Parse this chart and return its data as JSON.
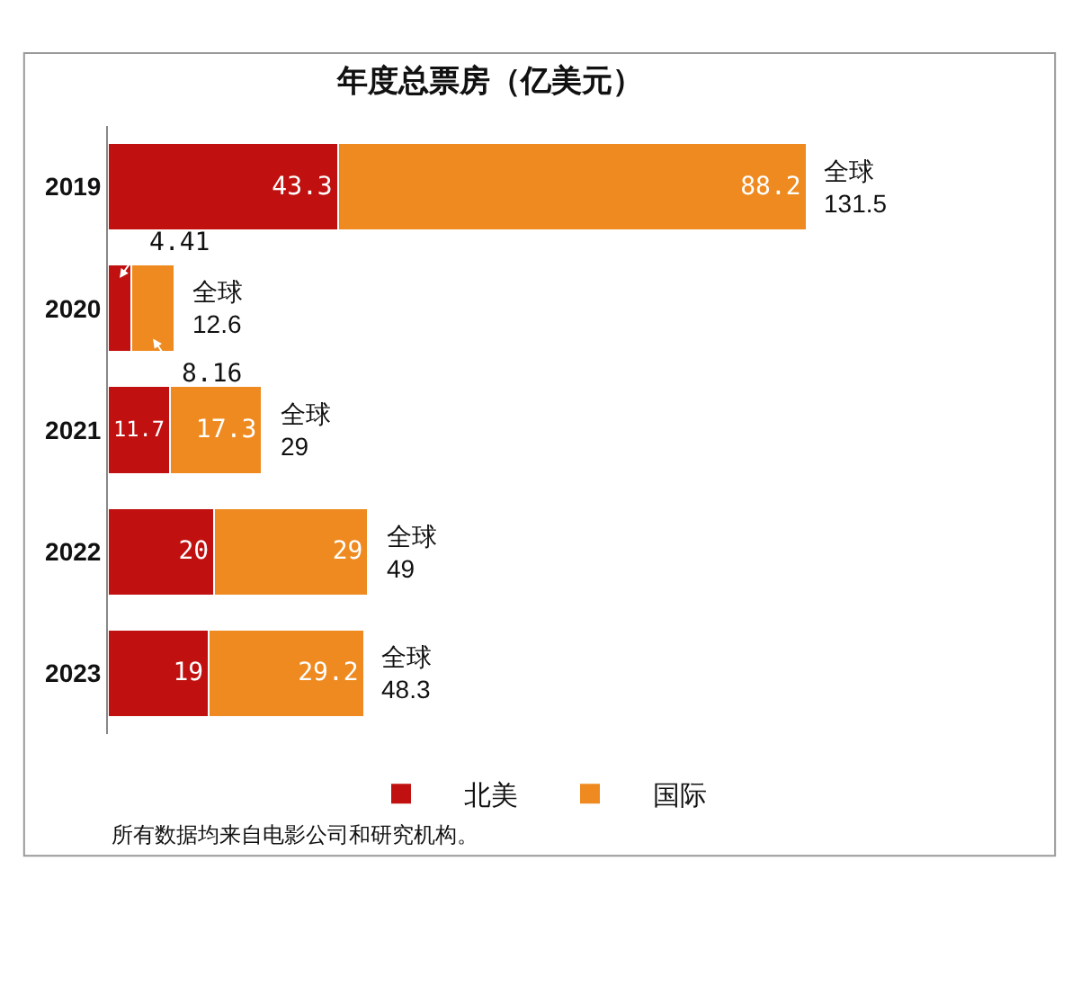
{
  "chart_data": {
    "type": "bar",
    "orientation": "horizontal",
    "stacked": true,
    "title": "年度总票房（亿美元）",
    "categories": [
      "2019",
      "2020",
      "2021",
      "2022",
      "2023"
    ],
    "series": [
      {
        "name": "北美",
        "color": "#c0100f",
        "values": [
          43.3,
          4.41,
          11.7,
          20,
          19
        ]
      },
      {
        "name": "国际",
        "color": "#ee8a1f",
        "values": [
          88.2,
          8.16,
          17.3,
          29,
          29.2
        ]
      }
    ],
    "data_labels": true,
    "totals": [
      "全球\n131.5",
      "全球\n12.6",
      "全球\n29",
      "全球\n49",
      "全球\n48.3"
    ],
    "legend": "bottom",
    "tick_labels": "y",
    "annotations": [
      "所有数据均来自电影公司和研究机构。"
    ]
  }
}
